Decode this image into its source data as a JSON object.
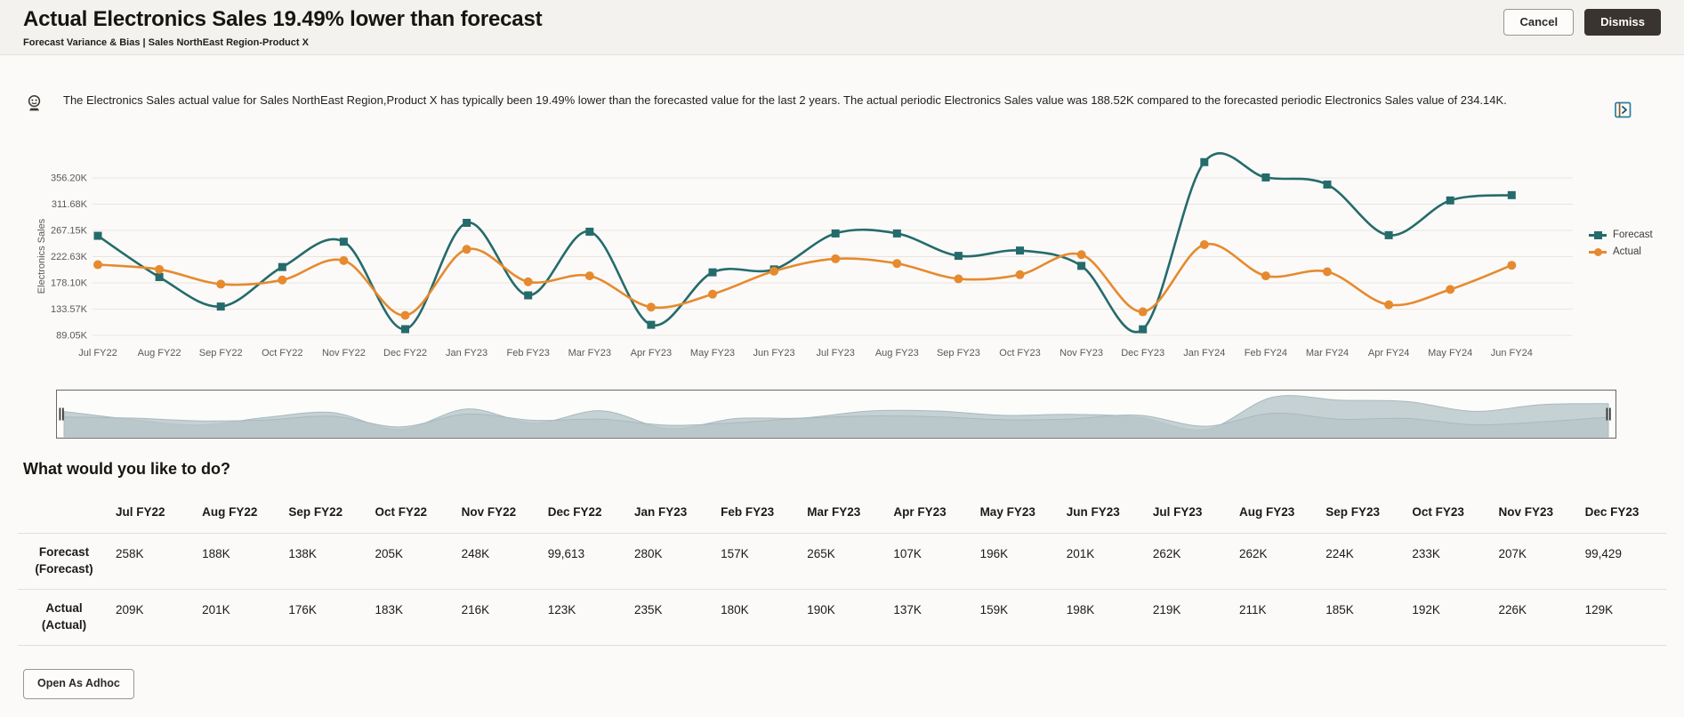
{
  "header": {
    "title": "Actual Electronics Sales 19.49% lower than forecast",
    "subtitle": "Forecast Variance & Bias | Sales NorthEast Region-Product X",
    "cancel_label": "Cancel",
    "dismiss_label": "Dismiss"
  },
  "insight": {
    "icon": "insight-icon",
    "expand_icon": "open-panel-icon",
    "text": "The Electronics Sales actual value for Sales NorthEast Region,Product X has typically been 19.49% lower than the forecasted value for the last 2 years. The actual periodic Electronics Sales value was 188.52K compared to the forecasted periodic Electronics Sales value of 234.14K."
  },
  "chart_data": {
    "type": "line",
    "ylabel": "Electronics Sales",
    "units": "K",
    "grid": true,
    "legend_position": "right",
    "yticks": [
      "356.20K",
      "311.68K",
      "267.15K",
      "222.63K",
      "178.10K",
      "133.57K",
      "89.05K"
    ],
    "ytick_values": [
      356.2,
      311.68,
      267.15,
      222.63,
      178.1,
      133.57,
      89.05
    ],
    "x": [
      "Jul FY22",
      "Aug FY22",
      "Sep FY22",
      "Oct FY22",
      "Nov FY22",
      "Dec FY22",
      "Jan FY23",
      "Feb FY23",
      "Mar FY23",
      "Apr FY23",
      "May FY23",
      "Jun FY23",
      "Jul FY23",
      "Aug FY23",
      "Sep FY23",
      "Oct FY23",
      "Nov FY23",
      "Dec FY23",
      "Jan FY24",
      "Feb FY24",
      "Mar FY24",
      "Apr FY24",
      "May FY24",
      "Jun FY24"
    ],
    "series": [
      {
        "name": "Forecast",
        "color": "#256b6b",
        "marker": "square",
        "values": [
          258,
          188,
          138,
          205,
          248,
          99.6,
          280,
          157,
          265,
          107,
          196,
          201,
          262,
          262,
          224,
          233,
          207,
          99.4,
          383,
          357,
          345,
          259,
          318,
          327
        ]
      },
      {
        "name": "Actual",
        "color": "#e68a2f",
        "marker": "circle",
        "values": [
          209,
          201,
          176,
          183,
          216,
          123,
          235,
          180,
          190,
          137,
          159,
          198,
          219,
          211,
          185,
          192,
          226,
          129,
          243,
          190,
          197,
          141,
          167,
          208
        ]
      }
    ]
  },
  "question": "What would you like to do?",
  "table": {
    "columns": [
      "Jul FY22",
      "Aug FY22",
      "Sep FY22",
      "Oct FY22",
      "Nov FY22",
      "Dec FY22",
      "Jan FY23",
      "Feb FY23",
      "Mar FY23",
      "Apr FY23",
      "May FY23",
      "Jun FY23",
      "Jul FY23",
      "Aug FY23",
      "Sep FY23",
      "Oct FY23",
      "Nov FY23",
      "Dec FY23"
    ],
    "rows": [
      {
        "label_lines": [
          "Forecast",
          "(Forecast)"
        ],
        "values": [
          "258K",
          "188K",
          "138K",
          "205K",
          "248K",
          "99,613",
          "280K",
          "157K",
          "265K",
          "107K",
          "196K",
          "201K",
          "262K",
          "262K",
          "224K",
          "233K",
          "207K",
          "99,429"
        ]
      },
      {
        "label_lines": [
          "Actual",
          "(Actual)"
        ],
        "values": [
          "209K",
          "201K",
          "176K",
          "183K",
          "216K",
          "123K",
          "235K",
          "180K",
          "190K",
          "137K",
          "159K",
          "198K",
          "219K",
          "211K",
          "185K",
          "192K",
          "226K",
          "129K"
        ]
      }
    ]
  },
  "footer": {
    "open_adhoc_label": "Open As Adhoc"
  }
}
